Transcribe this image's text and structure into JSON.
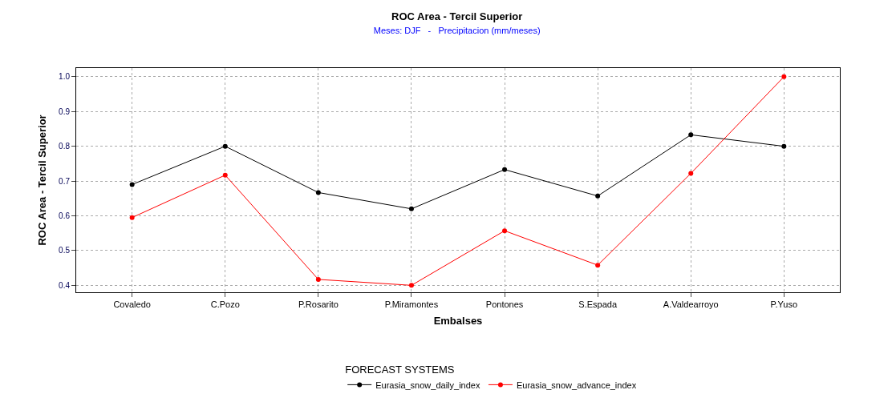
{
  "chart_data": {
    "type": "line",
    "title": "ROC Area - Tercil Superior",
    "subtitle": "Meses: DJF   -   Precipitacion (mm/meses)",
    "xlabel": "Embalses",
    "ylabel": "ROC Area - Tercil Superior",
    "legend_title": "FORECAST SYSTEMS",
    "categories": [
      "Covaledo",
      "C.Pozo",
      "P.Rosarito",
      "P.Miramontes",
      "Pontones",
      "S.Espada",
      "A.Valdearroyo",
      "P.Yuso"
    ],
    "series": [
      {
        "name": "Eurasia_snow_daily_index",
        "color": "#000000",
        "values": [
          0.69,
          0.8,
          0.667,
          0.62,
          0.733,
          0.657,
          0.833,
          0.8
        ]
      },
      {
        "name": "Eurasia_snow_advance_index",
        "color": "#ff0000",
        "values": [
          0.595,
          0.717,
          0.417,
          0.4,
          0.557,
          0.458,
          0.722,
          1.0
        ]
      }
    ],
    "ylim": [
      0.38,
      1.025
    ],
    "yticks": [
      {
        "value": 0.4,
        "label": "0.4"
      },
      {
        "value": 0.5,
        "label": "0.5"
      },
      {
        "value": 0.6,
        "label": "0.6"
      },
      {
        "value": 0.7,
        "label": "0.7"
      },
      {
        "value": 0.8,
        "label": "0.8"
      },
      {
        "value": 0.9,
        "label": "0.9"
      },
      {
        "value": 1.0,
        "label": "1.0"
      }
    ],
    "grid": true,
    "legend": "bottom",
    "marker": "circle",
    "line_style": "solid"
  }
}
